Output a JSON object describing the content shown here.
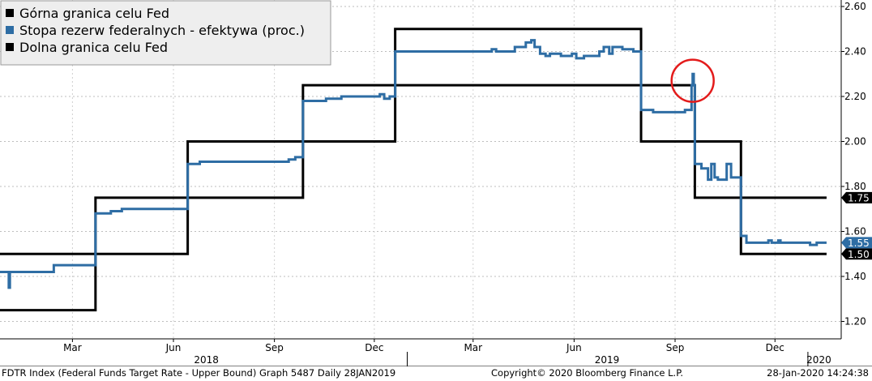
{
  "chart_data": {
    "type": "line",
    "legend": {
      "placement": "top-left",
      "entries": [
        {
          "label": "Górna granica celu Fed",
          "color": "#000000"
        },
        {
          "label": "Stopa rezerw federalnych - efektywa (proc.)",
          "color": "#2e6da4"
        },
        {
          "label": "Dolna granica celu Fed",
          "color": "#000000"
        }
      ]
    },
    "y_axis": {
      "position": "right",
      "range": [
        1.15,
        2.65
      ],
      "ticks": [
        "1.20",
        "1.40",
        "1.60",
        "1.80",
        "2.00",
        "2.20",
        "2.40",
        "2.60"
      ],
      "gridlines": true
    },
    "x_axis": {
      "range": [
        "2017-12-25",
        "2020-01-20"
      ],
      "month_ticks": [
        {
          "label": "Mar",
          "date": "2018-03-01"
        },
        {
          "label": "Jun",
          "date": "2018-06-01"
        },
        {
          "label": "Sep",
          "date": "2018-09-01"
        },
        {
          "label": "Dec",
          "date": "2018-12-01"
        },
        {
          "label": "Mar",
          "date": "2019-03-01"
        },
        {
          "label": "Jun",
          "date": "2019-06-01"
        },
        {
          "label": "Sep",
          "date": "2019-09-01"
        },
        {
          "label": "Dec",
          "date": "2019-12-01"
        }
      ],
      "year_labels": [
        {
          "label": "2018",
          "date": "2018-07-01"
        },
        {
          "label": "2019",
          "date": "2019-07-01"
        },
        {
          "label": "2020",
          "date": "2020-01-10"
        }
      ],
      "year_dividers": [
        "2018-12-31",
        "2019-12-31"
      ]
    },
    "series": [
      {
        "name": "Górna granica celu Fed",
        "color": "#000000",
        "step": true,
        "points": [
          [
            "2017-12-25",
            1.5
          ],
          [
            "2018-03-22",
            1.75
          ],
          [
            "2018-06-14",
            2.0
          ],
          [
            "2018-09-27",
            2.25
          ],
          [
            "2018-12-20",
            2.5
          ],
          [
            "2019-08-01",
            2.25
          ],
          [
            "2019-09-19",
            2.0
          ],
          [
            "2019-10-31",
            1.75
          ],
          [
            "2020-01-17",
            1.75
          ]
        ],
        "last_value": "1.75"
      },
      {
        "name": "Stopa rezerw federalnych - efektywa (proc.)",
        "color": "#2e6da4",
        "step": true,
        "points": [
          [
            "2017-12-25",
            1.42
          ],
          [
            "2017-12-29",
            1.42
          ],
          [
            "2018-01-02",
            1.35
          ],
          [
            "2018-01-03",
            1.42
          ],
          [
            "2018-02-05",
            1.42
          ],
          [
            "2018-02-12",
            1.45
          ],
          [
            "2018-03-22",
            1.68
          ],
          [
            "2018-04-05",
            1.69
          ],
          [
            "2018-04-15",
            1.7
          ],
          [
            "2018-06-14",
            1.9
          ],
          [
            "2018-06-25",
            1.91
          ],
          [
            "2018-09-14",
            1.92
          ],
          [
            "2018-09-20",
            1.93
          ],
          [
            "2018-09-27",
            2.18
          ],
          [
            "2018-10-18",
            2.19
          ],
          [
            "2018-11-01",
            2.2
          ],
          [
            "2018-12-06",
            2.21
          ],
          [
            "2018-12-10",
            2.19
          ],
          [
            "2018-12-15",
            2.2
          ],
          [
            "2018-12-20",
            2.4
          ],
          [
            "2019-02-01",
            2.4
          ],
          [
            "2019-03-18",
            2.41
          ],
          [
            "2019-03-22",
            2.4
          ],
          [
            "2019-04-08",
            2.42
          ],
          [
            "2019-04-18",
            2.44
          ],
          [
            "2019-04-23",
            2.45
          ],
          [
            "2019-04-26",
            2.42
          ],
          [
            "2019-05-01",
            2.39
          ],
          [
            "2019-05-06",
            2.38
          ],
          [
            "2019-05-10",
            2.39
          ],
          [
            "2019-05-20",
            2.38
          ],
          [
            "2019-05-30",
            2.39
          ],
          [
            "2019-06-03",
            2.37
          ],
          [
            "2019-06-10",
            2.38
          ],
          [
            "2019-06-20",
            2.38
          ],
          [
            "2019-06-24",
            2.4
          ],
          [
            "2019-06-28",
            2.42
          ],
          [
            "2019-07-03",
            2.39
          ],
          [
            "2019-07-06",
            2.42
          ],
          [
            "2019-07-15",
            2.41
          ],
          [
            "2019-07-25",
            2.4
          ],
          [
            "2019-08-01",
            2.14
          ],
          [
            "2019-08-12",
            2.13
          ],
          [
            "2019-09-05",
            2.13
          ],
          [
            "2019-09-10",
            2.14
          ],
          [
            "2019-09-16",
            2.25
          ],
          [
            "2019-09-17",
            2.3
          ],
          [
            "2019-09-18",
            2.25
          ],
          [
            "2019-09-19",
            1.9
          ],
          [
            "2019-09-25",
            1.88
          ],
          [
            "2019-10-01",
            1.83
          ],
          [
            "2019-10-04",
            1.9
          ],
          [
            "2019-10-07",
            1.84
          ],
          [
            "2019-10-10",
            1.83
          ],
          [
            "2019-10-17",
            1.83
          ],
          [
            "2019-10-18",
            1.9
          ],
          [
            "2019-10-22",
            1.84
          ],
          [
            "2019-10-31",
            1.58
          ],
          [
            "2019-11-05",
            1.55
          ],
          [
            "2019-11-20",
            1.55
          ],
          [
            "2019-11-25",
            1.56
          ],
          [
            "2019-11-28",
            1.55
          ],
          [
            "2019-12-04",
            1.56
          ],
          [
            "2019-12-06",
            1.55
          ],
          [
            "2019-12-26",
            1.55
          ],
          [
            "2020-01-02",
            1.54
          ],
          [
            "2020-01-08",
            1.55
          ],
          [
            "2020-01-17",
            1.55
          ]
        ],
        "last_value": "1.55"
      },
      {
        "name": "Dolna granica celu Fed",
        "color": "#000000",
        "step": true,
        "points": [
          [
            "2017-12-25",
            1.25
          ],
          [
            "2018-03-22",
            1.5
          ],
          [
            "2018-06-14",
            1.75
          ],
          [
            "2018-09-27",
            2.0
          ],
          [
            "2018-12-20",
            2.25
          ],
          [
            "2019-08-01",
            2.0
          ],
          [
            "2019-09-19",
            1.75
          ],
          [
            "2019-10-31",
            1.5
          ],
          [
            "2020-01-17",
            1.5
          ]
        ],
        "last_value": "1.50"
      }
    ],
    "annotations": [
      {
        "type": "circle",
        "color": "#e31b1b",
        "date": "2019-09-17",
        "value": 2.27
      }
    ]
  },
  "footer": {
    "left": "FDTR Index (Federal Funds Target Rate - Upper Bound) Graph 5487  Daily 28JAN2019",
    "center": "Copyright© 2020 Bloomberg Finance L.P.",
    "right": "28-Jan-2020 14:24:38"
  }
}
